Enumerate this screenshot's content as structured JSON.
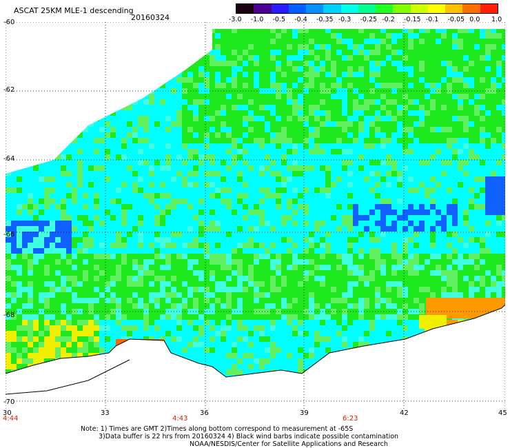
{
  "header": {
    "title": "ASCAT 25KM MLE-1 descending",
    "date": "20160324"
  },
  "colorbar": {
    "colors": [
      "#1a0010",
      "#4a0090",
      "#2a1aff",
      "#0060ff",
      "#0090ff",
      "#00d0ff",
      "#00ffe8",
      "#00ff90",
      "#20ff20",
      "#80ff00",
      "#d0ff00",
      "#ffff00",
      "#ffc000",
      "#ff7000",
      "#ff2000"
    ],
    "tick_labels": [
      "-3.0",
      "-1.0",
      "-0.5",
      "-0.4",
      "-0.35",
      "-0.3",
      "-0.25",
      "-0.2",
      "-0.15",
      "-0.1",
      "-0.05",
      "0.0",
      "1.0"
    ]
  },
  "map": {
    "lat_labels": [
      "-60",
      "-62",
      "-64",
      "-66",
      "-68",
      "-70"
    ],
    "lon_labels": [
      "30",
      "33",
      "36",
      "39",
      "42",
      "45"
    ],
    "time_labels": [
      "4:44",
      "4:43",
      "6:23"
    ],
    "colors": {
      "green": "#1ee81e",
      "light_green": "#60f060",
      "cyan": "#00ffff",
      "pale_cyan": "#40ffe0",
      "blue": "#1060ff",
      "deep_blue": "#0030e8",
      "yellow": "#f0f000",
      "orange": "#ff9900",
      "dark_orange": "#ff6600",
      "land": "#ffffff"
    }
  },
  "footer": {
    "line1": "Note: 1) Times are GMT  2)Times along bottom correspond to measurement at -65S",
    "line2": "3)Data buffer is 22 hrs from 20160324  4) Black wind barbs indicate possible contamination",
    "line3": "NOAA/NESDIS/Center for Satellite Applications and Research"
  }
}
